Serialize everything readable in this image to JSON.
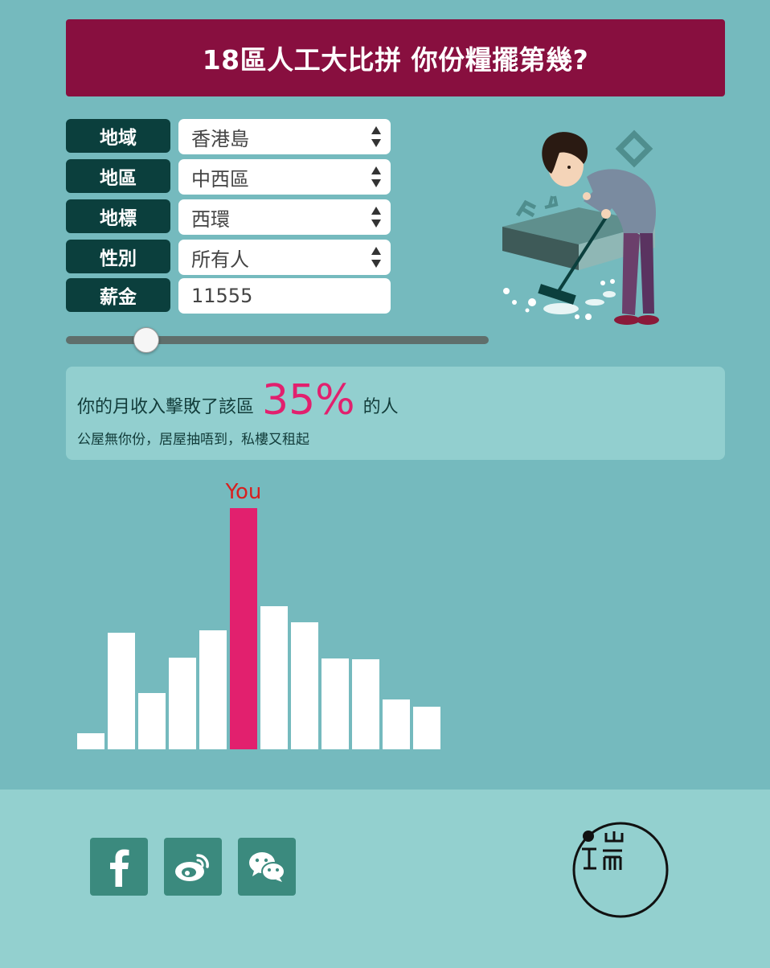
{
  "header": {
    "title": "18區人工大比拼 你份糧擺第幾?"
  },
  "form": {
    "region": {
      "label": "地域",
      "value": "香港島"
    },
    "district": {
      "label": "地區",
      "value": "中西區"
    },
    "landmark": {
      "label": "地標",
      "value": "西環"
    },
    "gender": {
      "label": "性別",
      "value": "所有人"
    },
    "salary": {
      "label": "薪金",
      "value": "11555"
    }
  },
  "slider": {
    "value": 11555,
    "fraction": 0.19
  },
  "result": {
    "prefix": "你的月收入擊敗了該區",
    "percent": "35%",
    "suffix": "的人",
    "comment": "公屋無你份，居屋抽唔到，私樓又租起"
  },
  "chart_data": {
    "type": "bar",
    "marker_label": "You",
    "highlight_index": 5,
    "values": [
      20,
      145,
      70,
      114,
      148,
      300,
      178,
      158,
      113,
      112,
      62,
      53
    ],
    "colors": {
      "normal": "#ffffff",
      "highlight": "#e2206e",
      "marker_text": "#d81f1f"
    }
  },
  "footer": {
    "icons": [
      "facebook-icon",
      "weibo-icon",
      "wechat-icon"
    ],
    "logo": "端"
  },
  "colors": {
    "background": "#75babe",
    "header_bg": "#880f3f",
    "label_bg": "#0b3f3d",
    "accent": "#e2206e",
    "footer_bg": "#93d0cf",
    "social_bg": "#3b8a7e"
  }
}
